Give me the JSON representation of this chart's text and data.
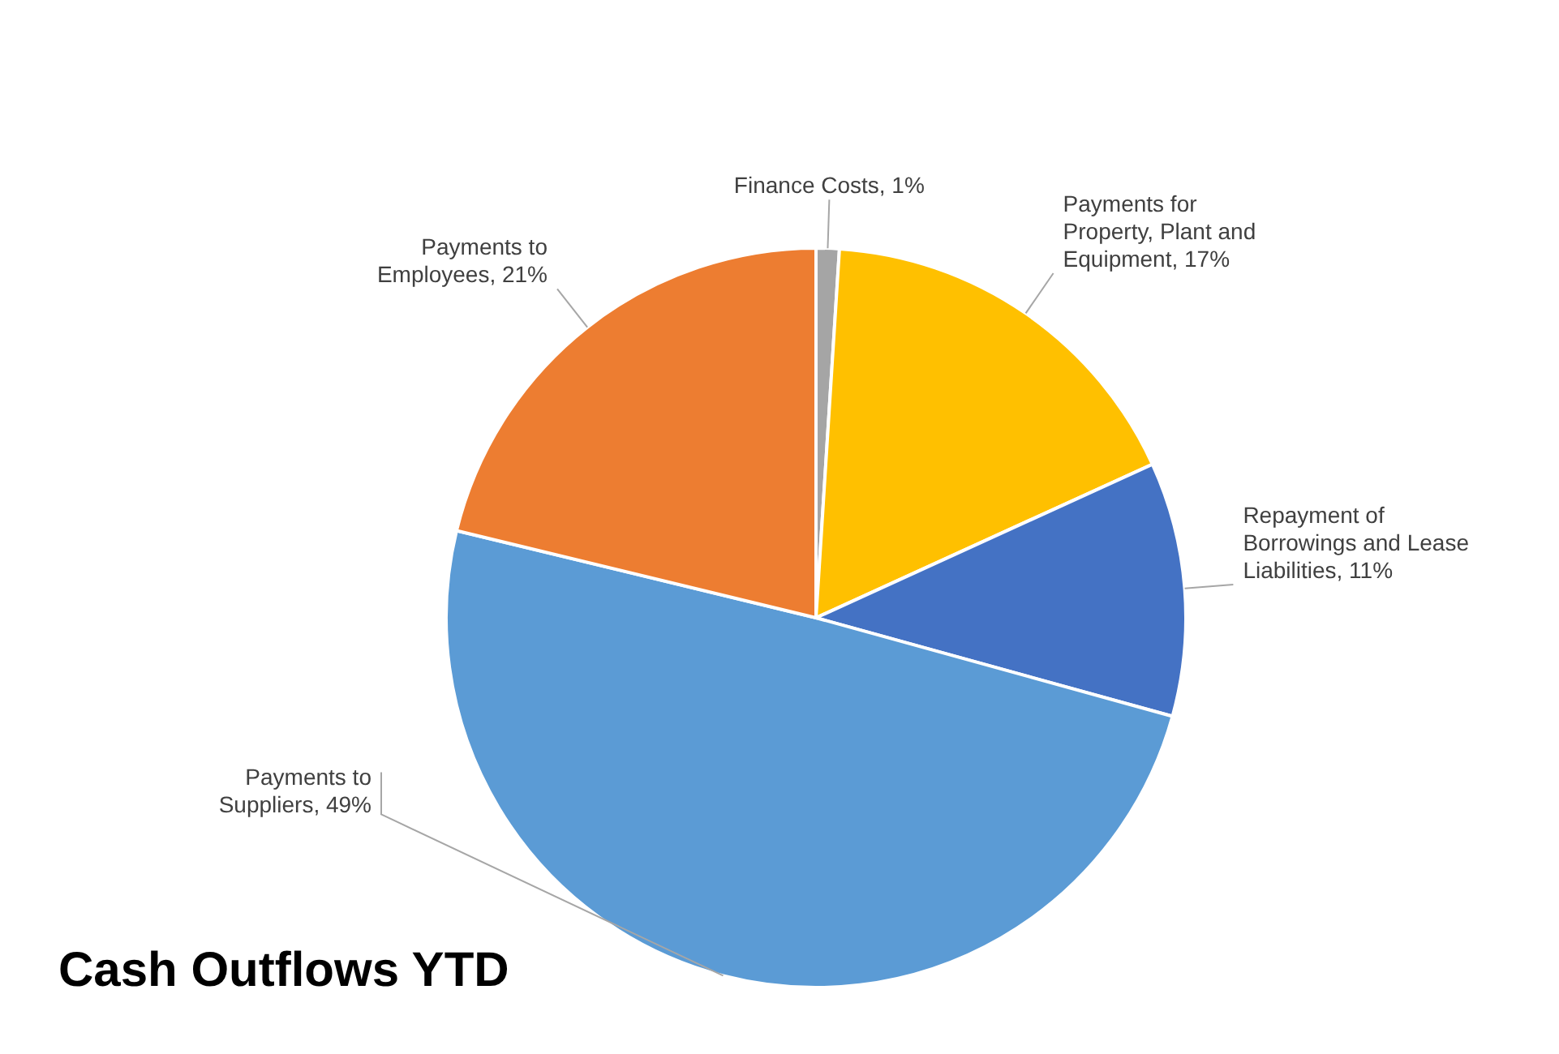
{
  "chart_data": {
    "type": "pie",
    "title": "Cash Outflows YTD",
    "categories": [
      "Finance Costs",
      "Payments for Property, Plant and Equipment",
      "Repayment of Borrowings and Lease Liabilities",
      "Payments to Suppliers",
      "Payments to Employees"
    ],
    "values": [
      1,
      17,
      11,
      49,
      21
    ],
    "colors": [
      "#a5a5a5",
      "#ffc000",
      "#4472c4",
      "#5b9bd5",
      "#ed7d31"
    ],
    "value_labels": [
      "1%",
      "17%",
      "11%",
      "49%",
      "21%"
    ],
    "legend": false
  }
}
